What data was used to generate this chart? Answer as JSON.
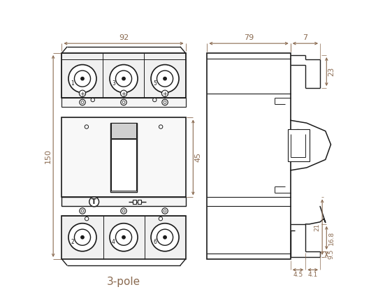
{
  "bg_color": "#ffffff",
  "line_color": "#1a1a1a",
  "dim_color": "#8a6a50",
  "fig_width": 5.61,
  "fig_height": 4.41,
  "title_text": "3-pole",
  "dim_92": "92",
  "dim_150": "150",
  "dim_45": "45",
  "dim_79": "79",
  "dim_7": "7",
  "dim_23": "23",
  "dim_168": "16.8",
  "dim_95": "9.5",
  "dim_21": "21",
  "dim_45b": "4.5",
  "dim_41": "4.1"
}
